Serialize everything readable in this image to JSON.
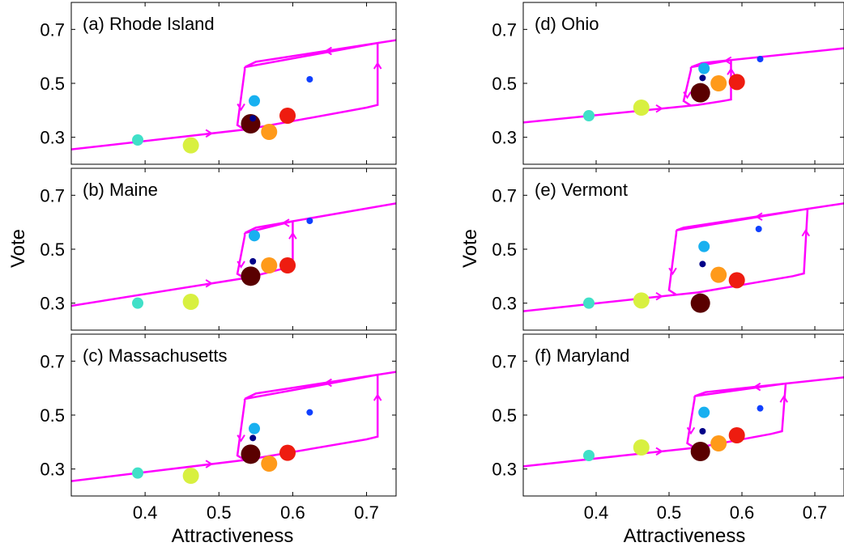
{
  "figure": {
    "ylabel": "Vote",
    "xlabel": "Attractiveness"
  },
  "colors": {
    "hysteresis": "#ff00ff",
    "axes": "#000000",
    "dot_colors": [
      "#40e0c8",
      "#d8f040",
      "#5a0000",
      "#ff9a1a",
      "#ee1c10",
      "#18b0f0",
      "#000088",
      "#1040ff"
    ]
  },
  "chart_data": [
    {
      "type": "scatter",
      "title": "(a) Rhode Island",
      "xlim": [
        0.3,
        0.74
      ],
      "ylim": [
        0.2,
        0.8
      ],
      "xticks": [
        0.4,
        0.5,
        0.6,
        0.7
      ],
      "yticks": [
        0.3,
        0.5,
        0.7
      ],
      "points": [
        {
          "x": 0.39,
          "y": 0.29,
          "size": "medium"
        },
        {
          "x": 0.462,
          "y": 0.27,
          "size": "large"
        },
        {
          "x": 0.543,
          "y": 0.35,
          "size": "xlarge"
        },
        {
          "x": 0.568,
          "y": 0.32,
          "size": "large"
        },
        {
          "x": 0.593,
          "y": 0.38,
          "size": "large"
        },
        {
          "x": 0.548,
          "y": 0.435,
          "size": "medium"
        },
        {
          "x": 0.546,
          "y": 0.37,
          "size": "small"
        },
        {
          "x": 0.623,
          "y": 0.515,
          "size": "small"
        }
      ],
      "curve_lower": [
        [
          0.3,
          0.255
        ],
        [
          0.54,
          0.33
        ],
        [
          0.7,
          0.41
        ],
        [
          0.715,
          0.42
        ]
      ],
      "curve_upper": [
        [
          0.535,
          0.56
        ],
        [
          0.55,
          0.58
        ],
        [
          0.74,
          0.66
        ]
      ],
      "switch_up_x": [
        0.715,
        0.715
      ],
      "switch_down_x": [
        0.535,
        0.525
      ]
    },
    {
      "type": "scatter",
      "title": "(b) Maine",
      "xlim": [
        0.3,
        0.74
      ],
      "ylim": [
        0.2,
        0.8
      ],
      "xticks": [
        0.4,
        0.5,
        0.6,
        0.7
      ],
      "yticks": [
        0.3,
        0.5,
        0.7
      ],
      "points": [
        {
          "x": 0.39,
          "y": 0.3,
          "size": "medium"
        },
        {
          "x": 0.462,
          "y": 0.305,
          "size": "large"
        },
        {
          "x": 0.543,
          "y": 0.4,
          "size": "xlarge"
        },
        {
          "x": 0.568,
          "y": 0.44,
          "size": "large"
        },
        {
          "x": 0.593,
          "y": 0.44,
          "size": "large"
        },
        {
          "x": 0.548,
          "y": 0.55,
          "size": "medium"
        },
        {
          "x": 0.546,
          "y": 0.455,
          "size": "small"
        },
        {
          "x": 0.623,
          "y": 0.605,
          "size": "small"
        }
      ],
      "curve_lower": [
        [
          0.3,
          0.29
        ],
        [
          0.54,
          0.395
        ],
        [
          0.59,
          0.43
        ],
        [
          0.6,
          0.435
        ]
      ],
      "curve_upper": [
        [
          0.535,
          0.56
        ],
        [
          0.55,
          0.58
        ],
        [
          0.74,
          0.67
        ]
      ],
      "switch_up_x": [
        0.6,
        0.6
      ],
      "switch_down_x": [
        0.535,
        0.525
      ]
    },
    {
      "type": "scatter",
      "title": "(c) Massachusetts",
      "xlim": [
        0.3,
        0.74
      ],
      "ylim": [
        0.2,
        0.8
      ],
      "xticks": [
        0.4,
        0.5,
        0.6,
        0.7
      ],
      "yticks": [
        0.3,
        0.5,
        0.7
      ],
      "points": [
        {
          "x": 0.39,
          "y": 0.285,
          "size": "medium"
        },
        {
          "x": 0.462,
          "y": 0.275,
          "size": "large"
        },
        {
          "x": 0.543,
          "y": 0.355,
          "size": "xlarge"
        },
        {
          "x": 0.568,
          "y": 0.32,
          "size": "large"
        },
        {
          "x": 0.593,
          "y": 0.36,
          "size": "large"
        },
        {
          "x": 0.548,
          "y": 0.45,
          "size": "medium"
        },
        {
          "x": 0.546,
          "y": 0.415,
          "size": "small"
        },
        {
          "x": 0.623,
          "y": 0.51,
          "size": "small"
        }
      ],
      "curve_lower": [
        [
          0.3,
          0.255
        ],
        [
          0.54,
          0.335
        ],
        [
          0.7,
          0.41
        ],
        [
          0.715,
          0.42
        ]
      ],
      "curve_upper": [
        [
          0.535,
          0.56
        ],
        [
          0.55,
          0.58
        ],
        [
          0.74,
          0.66
        ]
      ],
      "switch_up_x": [
        0.715,
        0.715
      ],
      "switch_down_x": [
        0.535,
        0.525
      ]
    },
    {
      "type": "scatter",
      "title": "(d) Ohio",
      "xlim": [
        0.3,
        0.74
      ],
      "ylim": [
        0.2,
        0.8
      ],
      "xticks": [
        0.4,
        0.5,
        0.6,
        0.7
      ],
      "yticks": [
        0.3,
        0.5,
        0.7
      ],
      "points": [
        {
          "x": 0.39,
          "y": 0.38,
          "size": "medium"
        },
        {
          "x": 0.462,
          "y": 0.41,
          "size": "large"
        },
        {
          "x": 0.543,
          "y": 0.465,
          "size": "xlarge"
        },
        {
          "x": 0.568,
          "y": 0.5,
          "size": "large"
        },
        {
          "x": 0.593,
          "y": 0.505,
          "size": "large"
        },
        {
          "x": 0.548,
          "y": 0.555,
          "size": "medium"
        },
        {
          "x": 0.546,
          "y": 0.52,
          "size": "small"
        },
        {
          "x": 0.625,
          "y": 0.59,
          "size": "small"
        }
      ],
      "curve_lower": [
        [
          0.3,
          0.355
        ],
        [
          0.54,
          0.42
        ],
        [
          0.575,
          0.435
        ],
        [
          0.585,
          0.44
        ]
      ],
      "curve_upper": [
        [
          0.53,
          0.56
        ],
        [
          0.545,
          0.575
        ],
        [
          0.74,
          0.63
        ]
      ],
      "switch_up_x": [
        0.585,
        0.585
      ],
      "switch_down_x": [
        0.53,
        0.52
      ]
    },
    {
      "type": "scatter",
      "title": "(e) Vermont",
      "xlim": [
        0.3,
        0.74
      ],
      "ylim": [
        0.2,
        0.8
      ],
      "xticks": [
        0.4,
        0.5,
        0.6,
        0.7
      ],
      "yticks": [
        0.3,
        0.5,
        0.7
      ],
      "points": [
        {
          "x": 0.39,
          "y": 0.3,
          "size": "medium"
        },
        {
          "x": 0.462,
          "y": 0.31,
          "size": "large"
        },
        {
          "x": 0.543,
          "y": 0.3,
          "size": "xlarge"
        },
        {
          "x": 0.568,
          "y": 0.405,
          "size": "large"
        },
        {
          "x": 0.593,
          "y": 0.385,
          "size": "large"
        },
        {
          "x": 0.548,
          "y": 0.51,
          "size": "medium"
        },
        {
          "x": 0.546,
          "y": 0.445,
          "size": "small"
        },
        {
          "x": 0.623,
          "y": 0.575,
          "size": "small"
        }
      ],
      "curve_lower": [
        [
          0.3,
          0.27
        ],
        [
          0.54,
          0.34
        ],
        [
          0.67,
          0.4
        ],
        [
          0.685,
          0.41
        ]
      ],
      "curve_upper": [
        [
          0.51,
          0.57
        ],
        [
          0.52,
          0.58
        ],
        [
          0.74,
          0.67
        ]
      ],
      "switch_up_x": [
        0.685,
        0.69
      ],
      "switch_down_x": [
        0.51,
        0.5
      ]
    },
    {
      "type": "scatter",
      "title": "(f) Maryland",
      "xlim": [
        0.3,
        0.74
      ],
      "ylim": [
        0.2,
        0.8
      ],
      "xticks": [
        0.4,
        0.5,
        0.6,
        0.7
      ],
      "yticks": [
        0.3,
        0.5,
        0.7
      ],
      "points": [
        {
          "x": 0.39,
          "y": 0.35,
          "size": "medium"
        },
        {
          "x": 0.462,
          "y": 0.38,
          "size": "large"
        },
        {
          "x": 0.543,
          "y": 0.365,
          "size": "xlarge"
        },
        {
          "x": 0.568,
          "y": 0.395,
          "size": "large"
        },
        {
          "x": 0.593,
          "y": 0.425,
          "size": "large"
        },
        {
          "x": 0.548,
          "y": 0.51,
          "size": "medium"
        },
        {
          "x": 0.546,
          "y": 0.44,
          "size": "small"
        },
        {
          "x": 0.625,
          "y": 0.525,
          "size": "small"
        }
      ],
      "curve_lower": [
        [
          0.3,
          0.31
        ],
        [
          0.54,
          0.38
        ],
        [
          0.64,
          0.43
        ],
        [
          0.655,
          0.44
        ]
      ],
      "curve_upper": [
        [
          0.535,
          0.57
        ],
        [
          0.55,
          0.585
        ],
        [
          0.74,
          0.64
        ]
      ],
      "switch_up_x": [
        0.655,
        0.66
      ],
      "switch_down_x": [
        0.535,
        0.525
      ]
    }
  ]
}
